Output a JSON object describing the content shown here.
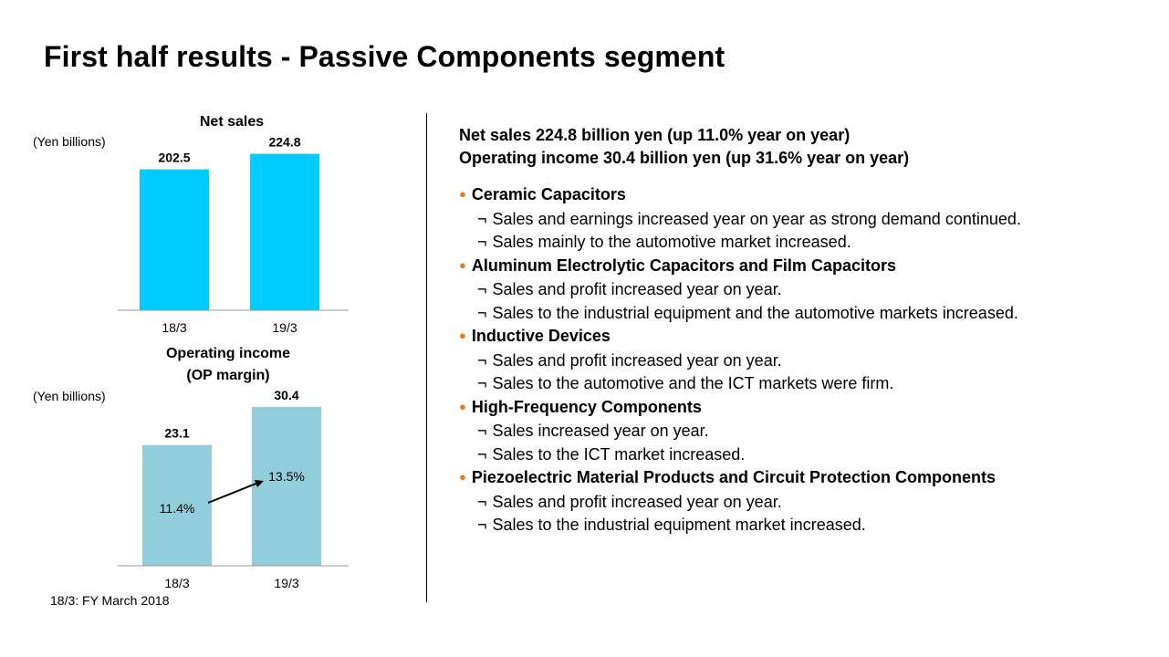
{
  "title": "First half results - Passive Components segment",
  "footnote": "18/3: FY March 2018",
  "chart_data": [
    {
      "type": "bar",
      "title": "Net sales",
      "ylabel": "(Yen billions)",
      "categories": [
        "18/3",
        "19/3"
      ],
      "values": [
        202.5,
        224.8
      ],
      "value_labels": [
        "202.5",
        "224.8"
      ],
      "ylim": [
        0,
        240
      ],
      "color": "#00ccff"
    },
    {
      "type": "bar",
      "title_lines": [
        "Operating income",
        "(OP margin)"
      ],
      "ylabel": "(Yen billions)",
      "categories": [
        "18/3",
        "19/3"
      ],
      "values": [
        23.1,
        30.4
      ],
      "value_labels": [
        "23.1",
        "30.4"
      ],
      "op_margin": [
        "11.4%",
        "13.5%"
      ],
      "ylim": [
        0,
        33
      ],
      "color": "#92cddc"
    }
  ],
  "summary": {
    "line1": "Net sales  224.8 billion yen (up 11.0% year on year)",
    "line2": "Operating income 30.4 billion yen (up 31.6% year on year)"
  },
  "bullet_color": "#e67e22",
  "bullet_glyph": "●",
  "detail_glyph": "¬",
  "segments": [
    {
      "name": "Ceramic Capacitors",
      "points": [
        "Sales and earnings increased year on year as strong demand continued.",
        "Sales mainly to the automotive market increased."
      ]
    },
    {
      "name": "Aluminum Electrolytic Capacitors and Film Capacitors",
      "points": [
        "Sales and profit increased year on year.",
        "Sales to the industrial equipment and the automotive markets increased."
      ]
    },
    {
      "name": "Inductive Devices",
      "points": [
        "Sales and profit increased year on year.",
        "Sales to the automotive and the ICT markets were firm."
      ]
    },
    {
      "name": "High-Frequency Components",
      "points": [
        "Sales increased year on year.",
        "Sales to the ICT market increased."
      ]
    },
    {
      "name": "Piezoelectric Material Products and Circuit Protection Components",
      "points": [
        "Sales and profit increased year on year.",
        "Sales to the industrial equipment market increased."
      ]
    }
  ]
}
